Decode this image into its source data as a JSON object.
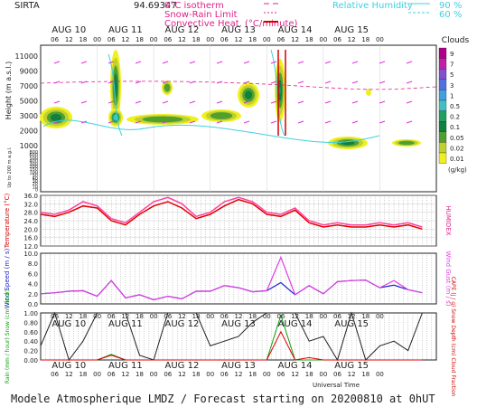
{
  "chart_data": [
    {
      "type": "heatmap",
      "panel": "clouds",
      "site": "SIRTA",
      "header_number": "94.69347",
      "legend_isotherm": "0°C isotherm",
      "legend_snow_rain": "Snow-Rain Limit",
      "legend_convective": "Convective Heat. (°C/minute)",
      "legend_rh": "Relative Humidity",
      "rh_levels": [
        "90 %",
        "60 %"
      ],
      "ylabel": "Height (m a.s.l.)",
      "ylabel2": "Up to 200 m a.g.l.",
      "yticks_upper": [
        "11000",
        "9000",
        "7000",
        "5000",
        "3000",
        "2000",
        "1000"
      ],
      "yticks_lower": [
        "800",
        "600",
        "500",
        "400",
        "300",
        "200",
        "150",
        "100",
        "50",
        "40",
        "30",
        "20",
        "10",
        "0"
      ],
      "colorbar_title": "Clouds",
      "colorbar_unit": "(g/kg)",
      "colorbar_labels": [
        "9",
        "7",
        "5",
        "3",
        "1",
        "0.5",
        "0.2",
        "0.1",
        "0.05",
        "0.02",
        "0.01"
      ],
      "colorbar_colors": [
        "#b0008a",
        "#c020a8",
        "#8050d0",
        "#5070e0",
        "#40a0e0",
        "#40c0c0",
        "#20a060",
        "#108040",
        "#50a030",
        "#c0d030",
        "#f0f020"
      ],
      "hour_ticks": [
        "06",
        "12",
        "18",
        "00"
      ],
      "days": [
        "AUG 10",
        "AUG 11",
        "AUG 12",
        "AUG 13",
        "AUG 14",
        "AUG 15"
      ]
    },
    {
      "type": "line",
      "panel": "temperature",
      "ylabel": "Temperature (°C)",
      "ylabel_right": "HUMIDEX",
      "yticks": [
        "36.0",
        "32.0",
        "28.0",
        "24.0",
        "20.0",
        "16.0",
        "12.0"
      ],
      "ylim": [
        12,
        36
      ],
      "x_hours": [
        0,
        6,
        12,
        18,
        24,
        30,
        36,
        42,
        48,
        54,
        60,
        66,
        72,
        78,
        84,
        90,
        96,
        102,
        108,
        114,
        120,
        126,
        132,
        138,
        144,
        150,
        156,
        162
      ],
      "series": [
        {
          "values": [
            27,
            26,
            28,
            31,
            30,
            24,
            22,
            27,
            31,
            33,
            30,
            25,
            27,
            31,
            34,
            32,
            27,
            26,
            29,
            23,
            21,
            22,
            21,
            21,
            22,
            21,
            22,
            20
          ],
          "color": "#e00000"
        },
        {
          "values": [
            28,
            27,
            29,
            33,
            31,
            25,
            23,
            28,
            33,
            35,
            32,
            26,
            28,
            33,
            35,
            33,
            28,
            27,
            30,
            24,
            22,
            23,
            22,
            22,
            23,
            22,
            23,
            21
          ],
          "color": "#ff40a0"
        }
      ]
    },
    {
      "type": "line",
      "panel": "wind",
      "ylabel": "Wind Speed (m / s)",
      "ylabel_right": "Wind Gust (m / s)",
      "yticks": [
        "10.0",
        "8.0",
        "6.0",
        "4.0",
        "2.0",
        "0.0"
      ],
      "ylim": [
        0,
        10
      ],
      "x_hours": [
        0,
        6,
        12,
        18,
        24,
        30,
        36,
        42,
        48,
        54,
        60,
        66,
        72,
        78,
        84,
        90,
        96,
        102,
        108,
        114,
        120,
        126,
        132,
        138,
        144,
        150,
        156,
        162
      ],
      "series": [
        {
          "values": [
            2.0,
            2.2,
            2.5,
            2.6,
            1.5,
            4.6,
            1.2,
            1.8,
            0.8,
            1.5,
            1.0,
            2.5,
            2.5,
            3.6,
            3.2,
            2.4,
            2.6,
            4.2,
            1.8,
            3.6,
            2.0,
            4.4,
            4.6,
            4.7,
            3.2,
            3.7,
            2.8,
            2.2
          ],
          "color": "#2020d0"
        },
        {
          "values": [
            2.0,
            2.2,
            2.5,
            2.6,
            1.5,
            4.6,
            1.2,
            1.8,
            0.8,
            1.5,
            1.0,
            2.5,
            2.5,
            3.6,
            3.2,
            2.4,
            2.6,
            9.2,
            1.8,
            3.6,
            2.0,
            4.4,
            4.6,
            4.7,
            3.2,
            4.6,
            2.8,
            2.2
          ],
          "color": "#e040e0"
        }
      ]
    },
    {
      "type": "line",
      "panel": "rain",
      "ylabel_left": "Rain (mm / hour) Snow (cm / hour)",
      "ylabel_right": "CAPE (J / g) Snow Depth (cm) Cloud Fraction",
      "yticks": [
        "1.00",
        "0.80",
        "0.60",
        "0.40",
        "0.20",
        "0.00"
      ],
      "ylim": [
        0,
        1
      ],
      "xlabel": "Universal Time",
      "x_hours": [
        0,
        6,
        12,
        18,
        24,
        30,
        36,
        42,
        48,
        54,
        60,
        66,
        72,
        78,
        84,
        90,
        96,
        102,
        108,
        114,
        120,
        126,
        132,
        138,
        144,
        150,
        156,
        162
      ],
      "series": [
        {
          "values": [
            0.3,
            1.0,
            0.0,
            0.4,
            1.0,
            1.0,
            1.0,
            0.1,
            0.0,
            1.0,
            1.0,
            1.0,
            0.3,
            0.4,
            0.5,
            0.8,
            1.0,
            1.0,
            1.0,
            0.4,
            0.5,
            0.0,
            1.0,
            0.0,
            0.3,
            0.4,
            0.2,
            1.0
          ],
          "color": "#202020"
        },
        {
          "values": [
            0,
            0,
            0,
            0,
            0,
            0.12,
            0,
            0,
            0,
            0,
            0,
            0,
            0,
            0,
            0,
            0,
            0,
            0.95,
            0,
            0,
            0,
            0,
            0,
            0,
            0,
            0,
            0,
            0
          ],
          "color": "#10a010"
        },
        {
          "values": [
            0,
            0,
            0,
            0,
            0,
            0.1,
            0,
            0,
            0,
            0,
            0,
            0,
            0,
            0,
            0,
            0,
            0,
            0.6,
            0,
            0.05,
            0,
            0,
            0,
            0,
            0,
            0,
            0,
            0
          ],
          "color": "#e00000"
        }
      ]
    }
  ],
  "footer": "Modele Atmospherique LMDZ / Forecast starting on 20200810 at 0hUT"
}
